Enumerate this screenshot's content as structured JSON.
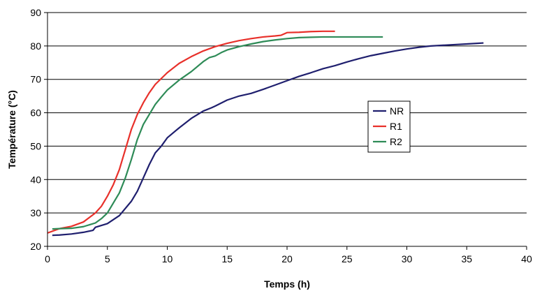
{
  "chart_data": {
    "type": "line",
    "title": "",
    "xlabel": "Temps (h)",
    "ylabel": "Température (°C)",
    "xlim": [
      0,
      40
    ],
    "ylim": [
      20,
      90
    ],
    "xticks": [
      0,
      5,
      10,
      15,
      20,
      25,
      30,
      35,
      40
    ],
    "yticks": [
      20,
      30,
      40,
      50,
      60,
      70,
      80,
      90
    ],
    "grid": "horizontal",
    "legend_position": "right",
    "series": [
      {
        "name": "NR",
        "color": "#1f1f6e",
        "points": [
          [
            0.4,
            23.3
          ],
          [
            1,
            23.4
          ],
          [
            2,
            23.7
          ],
          [
            3,
            24.2
          ],
          [
            3.8,
            24.8
          ],
          [
            4,
            25.7
          ],
          [
            5,
            26.8
          ],
          [
            6,
            29.2
          ],
          [
            7,
            33.5
          ],
          [
            7.5,
            36.5
          ],
          [
            8,
            40.5
          ],
          [
            8.5,
            44.5
          ],
          [
            9,
            48
          ],
          [
            9.5,
            50
          ],
          [
            10,
            52.5
          ],
          [
            11,
            55.5
          ],
          [
            12,
            58.3
          ],
          [
            13,
            60.5
          ],
          [
            13.7,
            61.5
          ],
          [
            14,
            62
          ],
          [
            15,
            63.8
          ],
          [
            16,
            65
          ],
          [
            17,
            65.8
          ],
          [
            18,
            67
          ],
          [
            19,
            68.3
          ],
          [
            20,
            69.6
          ],
          [
            21,
            70.9
          ],
          [
            22,
            72
          ],
          [
            23,
            73.2
          ],
          [
            24,
            74.1
          ],
          [
            25,
            75.2
          ],
          [
            26,
            76.2
          ],
          [
            27,
            77.1
          ],
          [
            28,
            77.8
          ],
          [
            29,
            78.5
          ],
          [
            30,
            79.1
          ],
          [
            31,
            79.6
          ],
          [
            32,
            80
          ],
          [
            33,
            80.2
          ],
          [
            34,
            80.4
          ],
          [
            35,
            80.6
          ],
          [
            36,
            80.8
          ],
          [
            36.4,
            80.9
          ]
        ]
      },
      {
        "name": "R1",
        "color": "#e8302a",
        "points": [
          [
            0,
            24
          ],
          [
            1,
            25.3
          ],
          [
            2,
            26
          ],
          [
            3,
            27.3
          ],
          [
            4,
            30
          ],
          [
            4.5,
            32
          ],
          [
            5,
            35
          ],
          [
            5.5,
            38.5
          ],
          [
            6,
            43
          ],
          [
            6.5,
            49
          ],
          [
            7,
            55
          ],
          [
            7.5,
            59.5
          ],
          [
            8,
            63
          ],
          [
            8.5,
            66
          ],
          [
            9,
            68.5
          ],
          [
            10,
            72
          ],
          [
            11,
            74.8
          ],
          [
            12,
            76.8
          ],
          [
            13,
            78.5
          ],
          [
            14,
            79.8
          ],
          [
            15,
            80.8
          ],
          [
            16,
            81.6
          ],
          [
            17,
            82.2
          ],
          [
            18,
            82.7
          ],
          [
            19,
            83
          ],
          [
            19.5,
            83.2
          ],
          [
            20,
            84
          ],
          [
            21,
            84.1
          ],
          [
            22,
            84.3
          ],
          [
            23,
            84.4
          ],
          [
            24,
            84.4
          ]
        ]
      },
      {
        "name": "R2",
        "color": "#2e8b57",
        "points": [
          [
            0.4,
            25.2
          ],
          [
            1,
            25.3
          ],
          [
            2,
            25.4
          ],
          [
            3,
            25.9
          ],
          [
            4,
            27
          ],
          [
            4.5,
            28.3
          ],
          [
            5,
            30
          ],
          [
            5.5,
            33
          ],
          [
            6,
            36
          ],
          [
            6.5,
            40.5
          ],
          [
            7,
            46
          ],
          [
            7.5,
            52
          ],
          [
            8,
            56.5
          ],
          [
            8.5,
            59.5
          ],
          [
            9,
            62.5
          ],
          [
            9.5,
            64.7
          ],
          [
            10,
            66.8
          ],
          [
            11,
            69.8
          ],
          [
            12,
            72.3
          ],
          [
            13,
            75.3
          ],
          [
            13.5,
            76.5
          ],
          [
            14,
            77
          ],
          [
            14.5,
            78
          ],
          [
            15,
            78.8
          ],
          [
            16,
            79.8
          ],
          [
            17,
            80.6
          ],
          [
            18,
            81.3
          ],
          [
            19,
            81.8
          ],
          [
            20,
            82.2
          ],
          [
            21,
            82.5
          ],
          [
            22,
            82.6
          ],
          [
            23,
            82.7
          ],
          [
            24,
            82.7
          ],
          [
            25,
            82.7
          ],
          [
            26,
            82.7
          ],
          [
            27,
            82.7
          ],
          [
            28,
            82.7
          ]
        ]
      }
    ]
  }
}
